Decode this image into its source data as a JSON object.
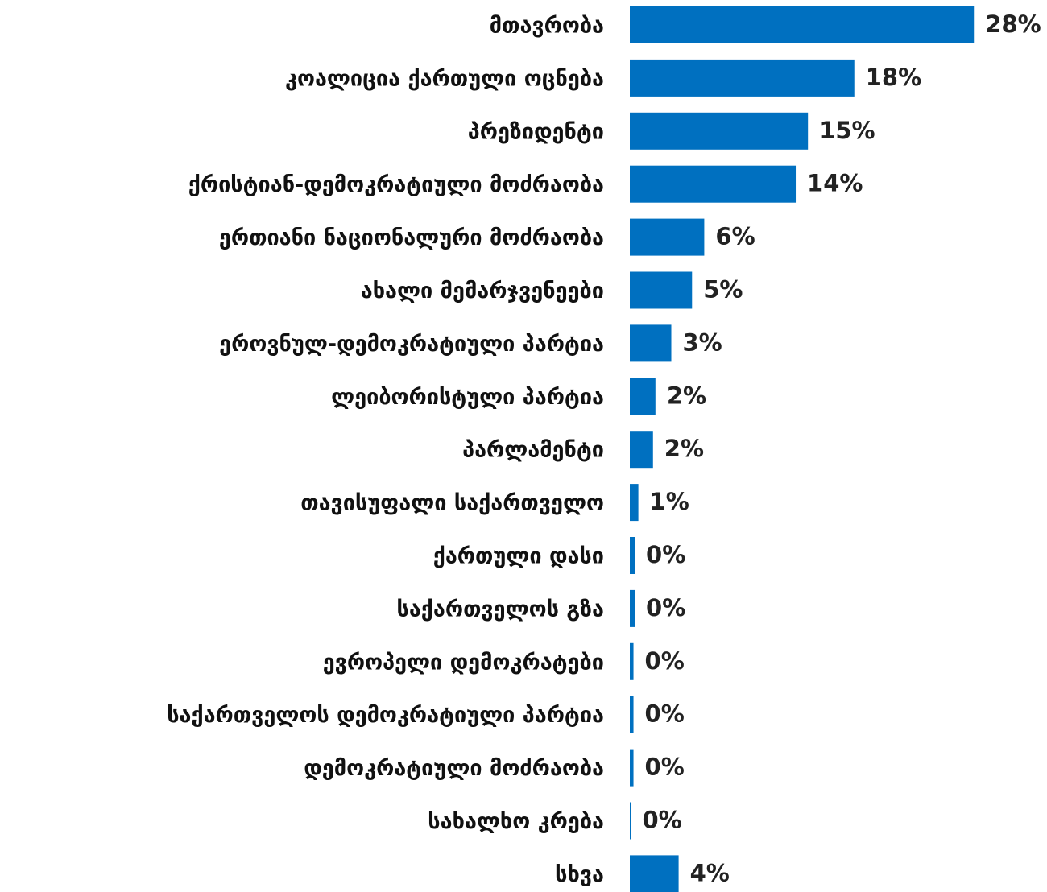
{
  "chart_data": {
    "type": "bar",
    "orientation": "horizontal",
    "color": "#0070c0",
    "categories": [
      "მთავრობა",
      "კოალიცია ქართული ოცნება",
      "პრეზიდენტი",
      "ქრისტიან-დემოკრატიული მოძრაობა",
      "ერთიანი ნაციონალური მოძრაობა",
      "ახალი მემარჯვენეები",
      "ეროვნულ-დემოკრატიული პარტია",
      "ლეიბორისტული პარტია",
      "პარლამენტი",
      "თავისუფალი საქართველო",
      "ქართული დასი",
      "საქართველოს გზა",
      "ევროპელი დემოკრატები",
      "საქართველოს დემოკრატიული პარტია",
      "დემოკრატიული მოძრაობა",
      "სახალხო კრება",
      "სხვა"
    ],
    "values": [
      28.2,
      18.4,
      14.6,
      13.6,
      6.1,
      5.1,
      3.4,
      2.1,
      1.9,
      0.7,
      0.4,
      0.4,
      0.3,
      0.3,
      0.3,
      0.1,
      4.0
    ],
    "value_labels": [
      "28%",
      "18%",
      "15%",
      "14%",
      "6%",
      "5%",
      "3%",
      "2%",
      "2%",
      "1%",
      "0%",
      "0%",
      "0%",
      "0%",
      "0%",
      "0%",
      "4%"
    ],
    "xlim": [
      0,
      30
    ]
  }
}
